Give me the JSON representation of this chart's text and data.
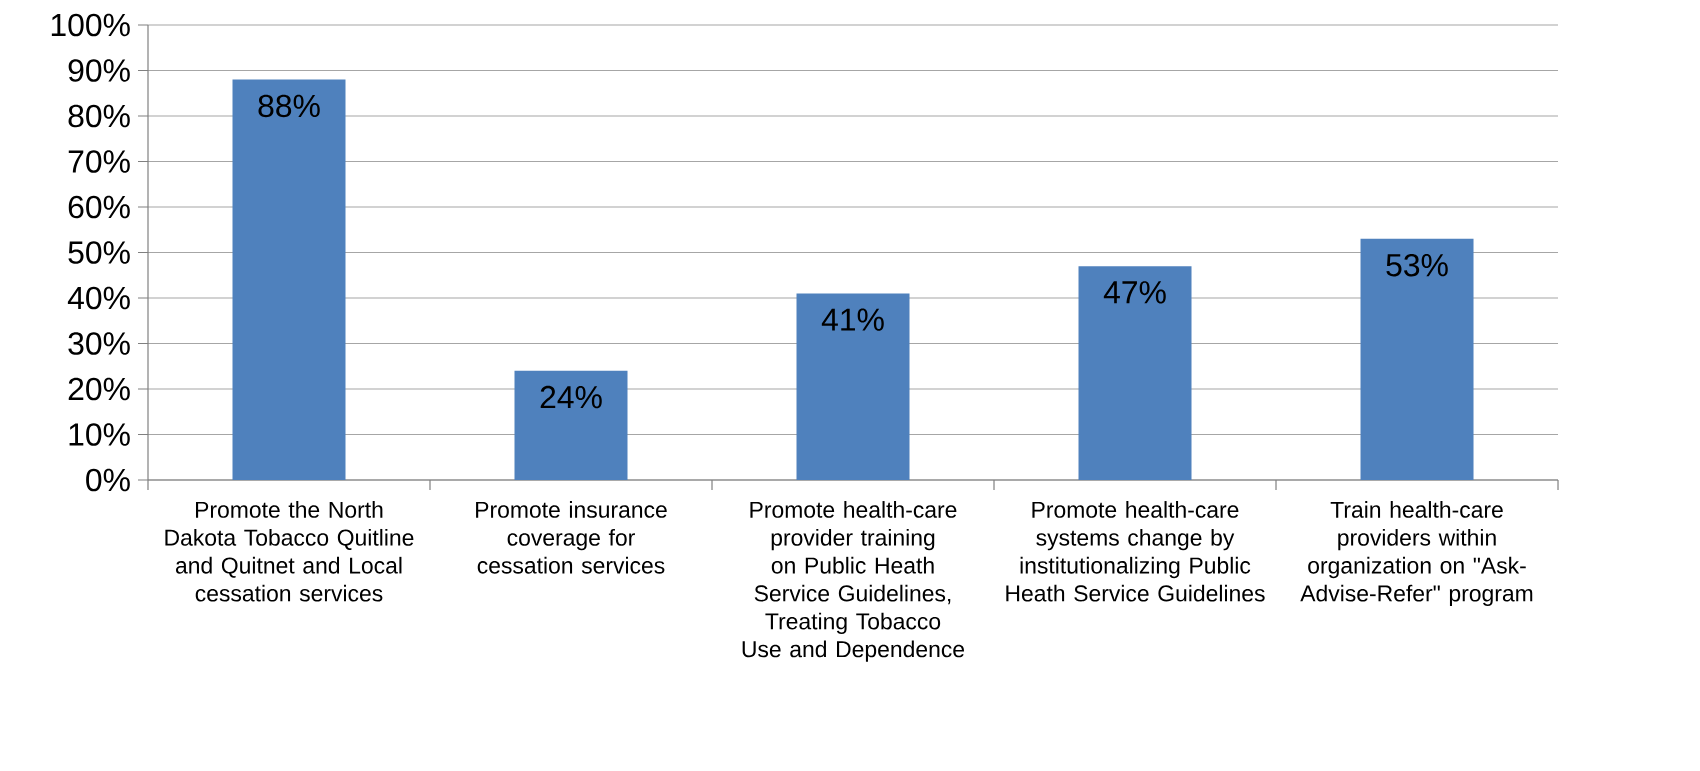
{
  "chart_data": {
    "type": "bar",
    "categories": [
      "Promote the North Dakota Tobacco Quitline and Quitnet and Local cessation services",
      "Promote insurance coverage for cessation services",
      "Promote health-care provider training on Public Heath Service Guidelines, Treating Tobacco Use and Dependence",
      "Promote health-care systems change by institutionalizing Public Heath Service Guidelines",
      "Train health-care providers within organization on \"Ask-Advise-Refer\" program"
    ],
    "values": [
      88,
      24,
      41,
      47,
      53
    ],
    "value_labels": [
      "88%",
      "24%",
      "41%",
      "47%",
      "53%"
    ],
    "color": "#4f81bd",
    "ylim": [
      0,
      100
    ],
    "yticks": [
      {
        "value": 0,
        "label": "0%"
      },
      {
        "value": 10,
        "label": "10%"
      },
      {
        "value": 20,
        "label": "20%"
      },
      {
        "value": 30,
        "label": "30%"
      },
      {
        "value": 40,
        "label": "40%"
      },
      {
        "value": 50,
        "label": "50%"
      },
      {
        "value": 60,
        "label": "60%"
      },
      {
        "value": 70,
        "label": "70%"
      },
      {
        "value": 80,
        "label": "80%"
      },
      {
        "value": 90,
        "label": "90%"
      },
      {
        "value": 100,
        "label": "100%"
      }
    ],
    "grid": "y"
  }
}
